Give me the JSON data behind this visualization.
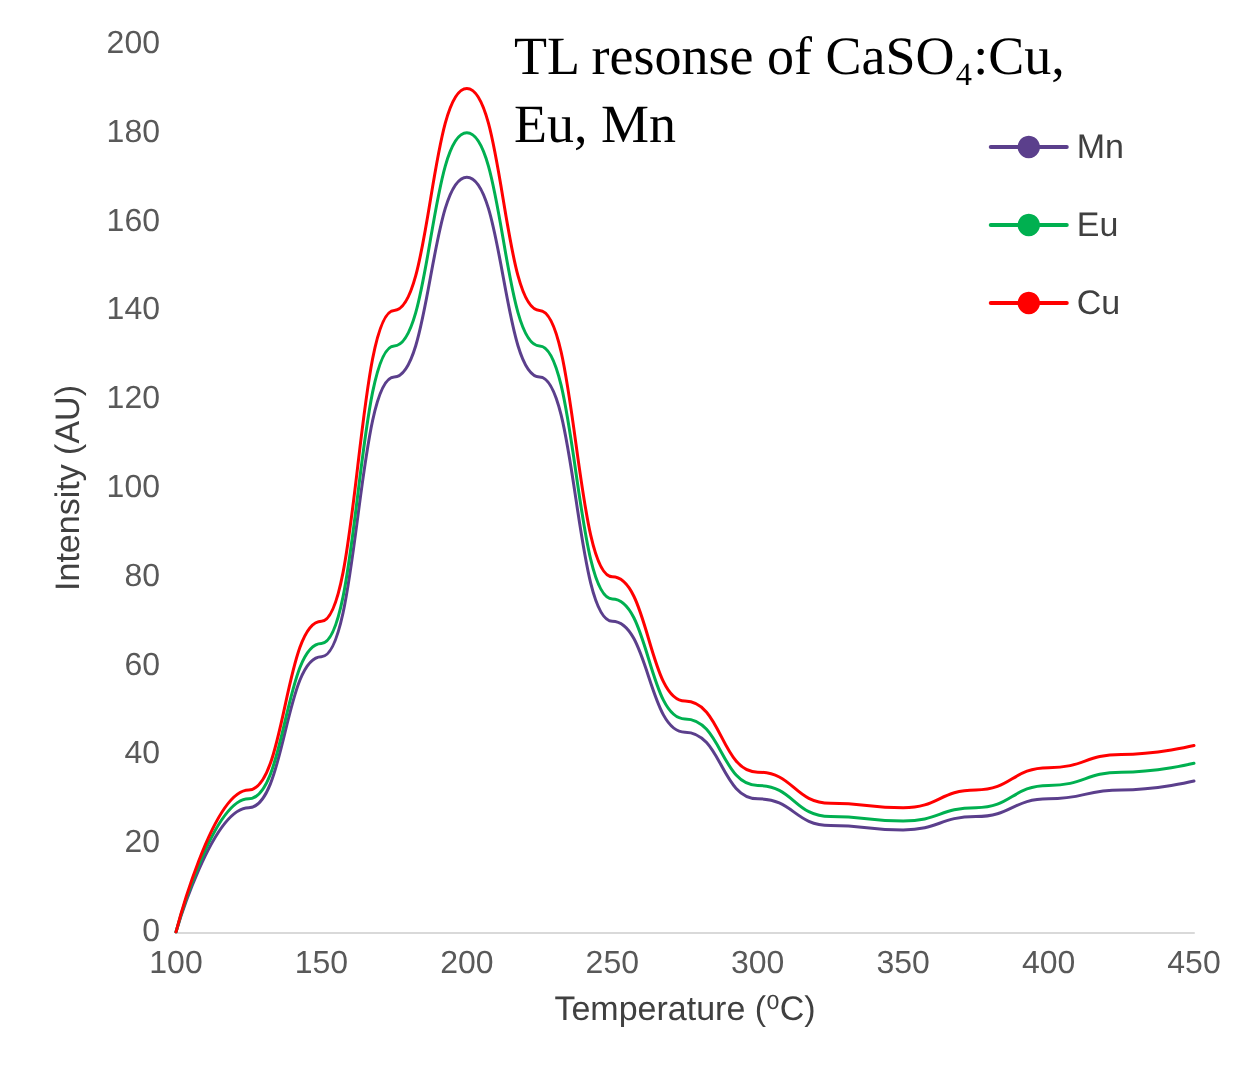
{
  "chart_data": {
    "type": "line",
    "title": "TL resonse of CaSO₄:Cu, Eu, Mn",
    "xlabel": "Temperature (⁰C)",
    "ylabel": "Intensity (AU)",
    "x": [
      100,
      125,
      150,
      175,
      200,
      225,
      250,
      275,
      300,
      325,
      350,
      375,
      400,
      425,
      450
    ],
    "series": [
      {
        "name": "Mn",
        "color": "#5b3f8c",
        "values": [
          0,
          28,
          62,
          125,
          170,
          125,
          70,
          45,
          30,
          24,
          23,
          26,
          30,
          32,
          34
        ]
      },
      {
        "name": "Eu",
        "color": "#00b050",
        "values": [
          0,
          30,
          65,
          132,
          180,
          132,
          75,
          48,
          33,
          26,
          25,
          28,
          33,
          36,
          38
        ]
      },
      {
        "name": "Cu",
        "color": "#ff0000",
        "values": [
          0,
          32,
          70,
          140,
          190,
          140,
          80,
          52,
          36,
          29,
          28,
          32,
          37,
          40,
          42
        ]
      }
    ],
    "xlim": [
      100,
      450
    ],
    "xticks": [
      100,
      150,
      200,
      250,
      300,
      350,
      400,
      450
    ],
    "ylim": [
      0,
      200
    ],
    "yticks": [
      0,
      20,
      40,
      60,
      80,
      100,
      120,
      140,
      160,
      180,
      200
    ],
    "grid": false,
    "legend": "top right",
    "marker": "none",
    "line_style": "solid"
  }
}
